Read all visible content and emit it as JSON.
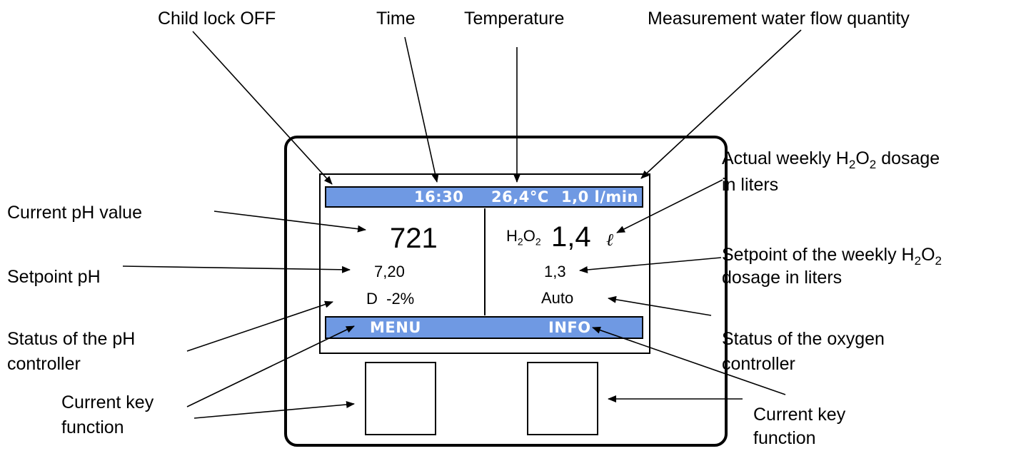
{
  "labels": {
    "child_lock": "Child lock OFF",
    "time": "Time",
    "temperature": "Temperature",
    "flow": "Measurement water flow quantity",
    "weekly_actual_line1_a": "Actual weekly H",
    "weekly_actual_line1_b": "2",
    "weekly_actual_line1_c": "O",
    "weekly_actual_line1_d": "2",
    "weekly_actual_line1_e": " dosage",
    "weekly_actual_line2": "in liters",
    "current_ph": "Current pH value",
    "setpoint_ph": "Setpoint pH",
    "weekly_setpoint_line1_a": "Setpoint of the weekly H",
    "weekly_setpoint_line1_b": "2",
    "weekly_setpoint_line1_c": "O",
    "weekly_setpoint_line1_d": "2",
    "weekly_setpoint_line2": "dosage in liters",
    "status_ph_line1": "Status of the pH",
    "status_ph_line2": "controller",
    "status_oxygen_line1": "Status of the oxygen",
    "status_oxygen_line2": "controller",
    "key_left_line1": "Current key",
    "key_left_line2": "function",
    "key_right_line1": "Current key",
    "key_right_line2": "function"
  },
  "display": {
    "top_bar": {
      "time": "16:30",
      "temperature": "26,4°C",
      "flow": "1,0 l/min"
    },
    "left": {
      "ph_value": "721",
      "ph_setpoint": "7,20",
      "ph_status": "D  -2%"
    },
    "right": {
      "h2o2_prefix_h": "H",
      "h2o2_prefix_2a": "2",
      "h2o2_prefix_o": "O",
      "h2o2_prefix_2b": "2",
      "h2o2_value": "1,4",
      "h2o2_unit": "ℓ",
      "h2o2_setpoint": "1,3",
      "oxygen_status": "Auto"
    },
    "bottom_bar": {
      "left_key": "MENU",
      "right_key": "INFO"
    }
  },
  "colors": {
    "bar": "#6f99e3",
    "bar_text": "#ffffff"
  }
}
